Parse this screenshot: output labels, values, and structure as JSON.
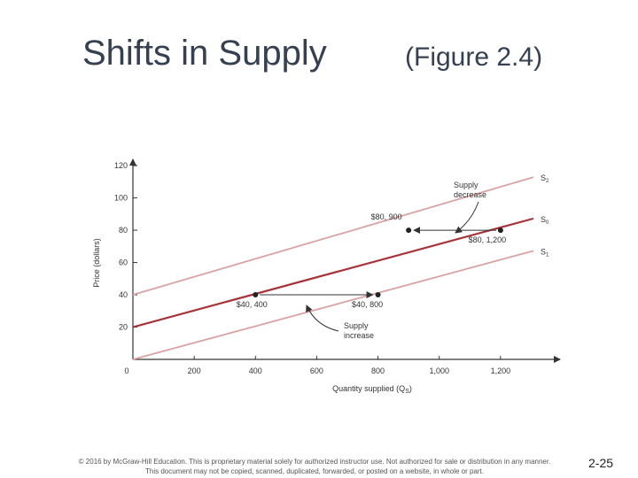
{
  "slide": {
    "title": "Shifts in Supply",
    "figure_ref": "(Figure 2.4)",
    "footer_line1": "© 2016 by McGraw-Hill Education. This is proprietary material solely for authorized instructor use. Not authorized for sale or distribution in any manner.",
    "footer_line2": "This document may not be copied, scanned, duplicated, forwarded, or posted on a website, in whole or part.",
    "page_number": "2-25"
  },
  "chart_data": {
    "type": "line",
    "xlabel": "Quantity supplied (Q",
    "xlabel_sub": "S",
    "xlabel_close": ")",
    "ylabel": "Price (dollars)",
    "xlim": [
      0,
      1400
    ],
    "ylim": [
      0,
      125
    ],
    "x_ticks": [
      0,
      200,
      400,
      600,
      800,
      1000,
      1200
    ],
    "x_tick_labels": [
      "0",
      "200",
      "400",
      "600",
      "800",
      "1,000",
      "1,200"
    ],
    "y_ticks": [
      20,
      40,
      60,
      80,
      100,
      120
    ],
    "y_tick_labels": [
      "20",
      "40",
      "60",
      "80",
      "100",
      "120"
    ],
    "grid": false,
    "series": [
      {
        "name": "S",
        "sub": "2",
        "color": "#d9a3a3",
        "x": [
          0,
          1400
        ],
        "y": [
          40,
          118
        ]
      },
      {
        "name": "S",
        "sub": "0",
        "color": "#a8343a",
        "x": [
          0,
          1400
        ],
        "y": [
          20,
          92
        ]
      },
      {
        "name": "S",
        "sub": "1",
        "color": "#d9a3a3",
        "x": [
          0,
          1400
        ],
        "y": [
          0,
          72
        ]
      }
    ],
    "points": [
      {
        "label": "$80, 900",
        "x": 900,
        "y": 80
      },
      {
        "label": "$80, 1,200",
        "x": 1200,
        "y": 80
      },
      {
        "label": "$40, 400",
        "x": 400,
        "y": 40
      },
      {
        "label": "$40, 800",
        "x": 800,
        "y": 40
      }
    ],
    "arrows": [
      {
        "from": [
          1200,
          80
        ],
        "to": [
          900,
          80
        ]
      },
      {
        "from": [
          400,
          40
        ],
        "to": [
          800,
          40
        ]
      }
    ],
    "annotations": [
      {
        "text_line1": "Supply",
        "text_line2": "decrease"
      },
      {
        "text_line1": "Supply",
        "text_line2": "increase"
      }
    ]
  }
}
